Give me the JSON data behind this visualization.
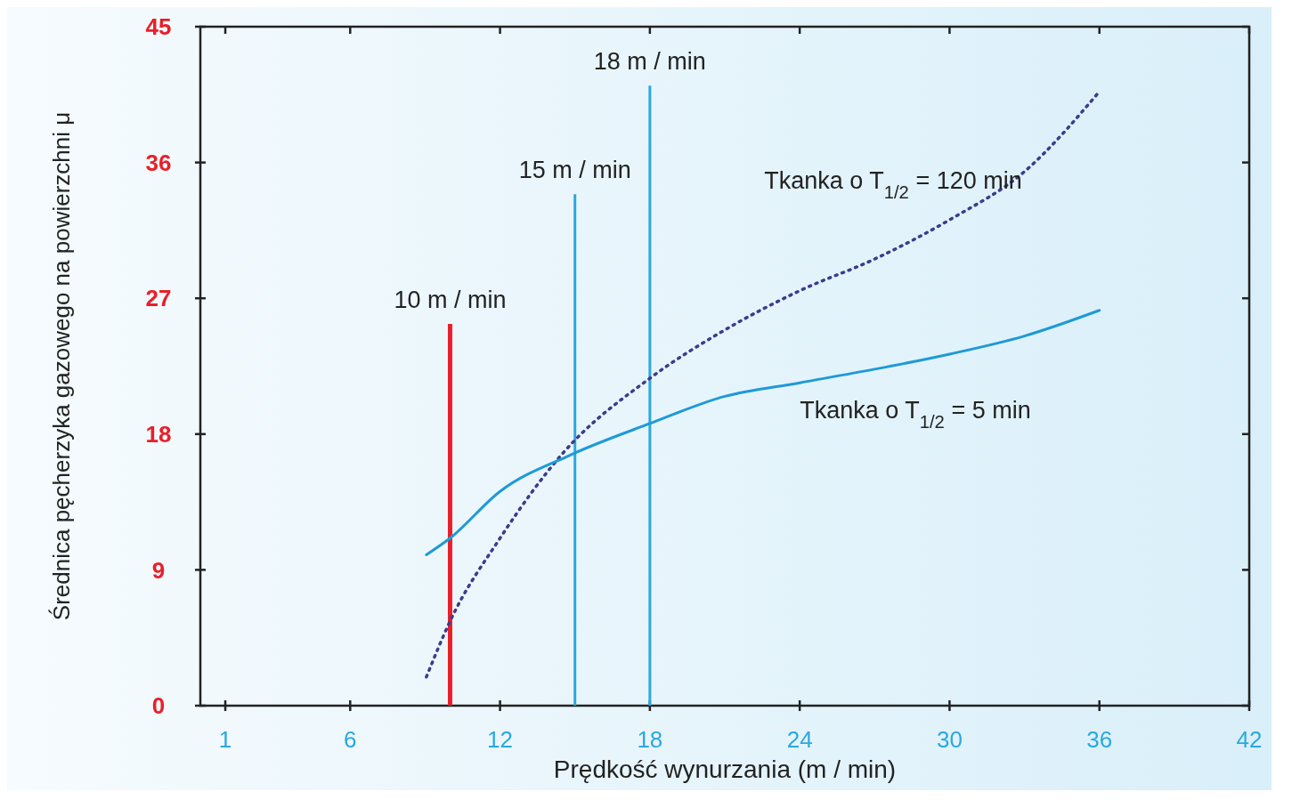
{
  "chart_data": {
    "type": "line",
    "xlabel": "Prędkość wynurzania (m / min)",
    "ylabel": "Średnica pęcherzyka gazowego na powierzchni μ",
    "xlim": [
      0,
      42
    ],
    "xticks": [
      1,
      6,
      12,
      18,
      24,
      30,
      36,
      42
    ],
    "ylim": [
      0,
      45
    ],
    "yticks": [
      0,
      9,
      18,
      27,
      36,
      45
    ],
    "grid": false,
    "marker": "none",
    "series": [
      {
        "name": "Tkanka o T$_{1/2}$ = 120 min",
        "color": "#3c3c8c",
        "line_style": "dotted",
        "x": [
          9.05,
          10,
          12,
          14.5,
          18,
          21,
          24,
          27,
          30,
          33,
          36
        ],
        "values": [
          1.9,
          5.6,
          11.1,
          16.7,
          21.7,
          24.9,
          27.5,
          29.6,
          32.2,
          35.4,
          40.7
        ]
      },
      {
        "name": "Tkanka o T$_{1/2}$ = 5 min",
        "color": "#1e9ad6",
        "line_style": "solid",
        "x": [
          9.05,
          10,
          12,
          14.8,
          18,
          21,
          24,
          27,
          30,
          33,
          36
        ],
        "values": [
          10,
          11.1,
          14.2,
          16.6,
          18.7,
          20.5,
          21.4,
          22.3,
          23.3,
          24.5,
          26.2
        ]
      }
    ],
    "ref_lines": [
      {
        "axis": "x",
        "value": 10,
        "label": "10 m / min",
        "color": "#e8202a"
      },
      {
        "axis": "x",
        "value": 15,
        "label": "15 m / min",
        "color": "#2aa8e0"
      },
      {
        "axis": "x",
        "value": 18,
        "label": "18 m / min",
        "color": "#2aa8e0"
      }
    ]
  }
}
